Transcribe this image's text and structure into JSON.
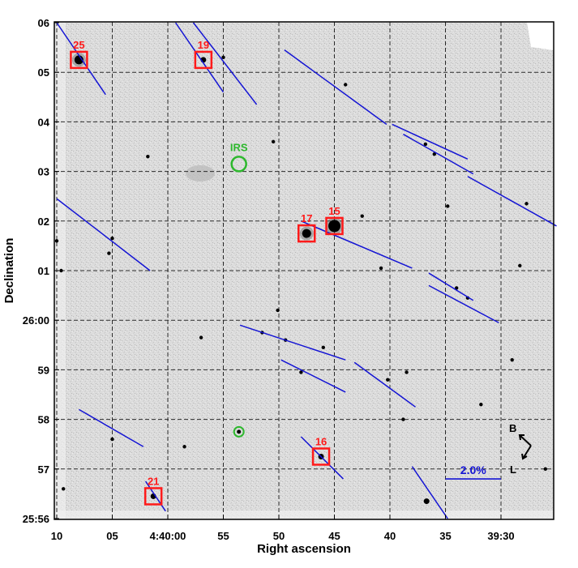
{
  "colors": {
    "frame": "#000000",
    "grid": "#2a2a2a",
    "sky": "#d9d9d9",
    "vector": "#1414d4",
    "box": "#ff1a1a",
    "irs": "#2db82d"
  },
  "chart_data": {
    "type": "scatter",
    "xlabel": "Right ascension",
    "ylabel": "Declination",
    "x_ticks": [
      {
        "value": 10,
        "label": "10"
      },
      {
        "value": 5,
        "label": "05"
      },
      {
        "value": 0,
        "label": "4:40:00"
      },
      {
        "value": -5,
        "label": "55"
      },
      {
        "value": -10,
        "label": "50"
      },
      {
        "value": -15,
        "label": "45"
      },
      {
        "value": -20,
        "label": "40"
      },
      {
        "value": -25,
        "label": "35"
      },
      {
        "value": -30,
        "label": "39:30"
      }
    ],
    "y_ticks": [
      {
        "value": 0,
        "label": "25:56"
      },
      {
        "value": 1,
        "label": "57"
      },
      {
        "value": 2,
        "label": "58"
      },
      {
        "value": 3,
        "label": "59"
      },
      {
        "value": 4,
        "label": "26:00"
      },
      {
        "value": 5,
        "label": "01"
      },
      {
        "value": 6,
        "label": "02"
      },
      {
        "value": 7,
        "label": "03"
      },
      {
        "value": 8,
        "label": "04"
      },
      {
        "value": 9,
        "label": "05"
      },
      {
        "value": 10,
        "label": "06"
      }
    ],
    "xlim": [
      10,
      -35
    ],
    "ylim": [
      0,
      10.1
    ],
    "grid": true,
    "stars": [
      {
        "x": 8.0,
        "y": 9.25,
        "mag": 3,
        "label": "25"
      },
      {
        "x": -3.2,
        "y": 9.25,
        "mag": 2,
        "label": "19"
      },
      {
        "x": -12.5,
        "y": 5.75,
        "mag": 3,
        "label": "17"
      },
      {
        "x": -15.0,
        "y": 5.9,
        "mag": 4,
        "label": "15"
      },
      {
        "x": -13.8,
        "y": 1.25,
        "mag": 2,
        "label": "16"
      },
      {
        "x": 1.3,
        "y": 0.45,
        "mag": 2,
        "label": "21"
      },
      {
        "x": -5.0,
        "y": 9.3,
        "mag": 1
      },
      {
        "x": -16.0,
        "y": 8.75,
        "mag": 1
      },
      {
        "x": 5.0,
        "y": 5.65,
        "mag": 1
      },
      {
        "x": 5.3,
        "y": 5.35,
        "mag": 1
      },
      {
        "x": 1.8,
        "y": 7.3,
        "mag": 1
      },
      {
        "x": -23.2,
        "y": 7.55,
        "mag": 1
      },
      {
        "x": -24.0,
        "y": 7.35,
        "mag": 1
      },
      {
        "x": -32.3,
        "y": 6.35,
        "mag": 1
      },
      {
        "x": -26.0,
        "y": 4.65,
        "mag": 1
      },
      {
        "x": -27.0,
        "y": 4.45,
        "mag": 1
      },
      {
        "x": -10.6,
        "y": 3.6,
        "mag": 1
      },
      {
        "x": -12.0,
        "y": 2.95,
        "mag": 1
      },
      {
        "x": -19.8,
        "y": 2.8,
        "mag": 1
      },
      {
        "x": -21.2,
        "y": 2.0,
        "mag": 1
      },
      {
        "x": -21.5,
        "y": 2.95,
        "mag": 1
      },
      {
        "x": -31.7,
        "y": 5.1,
        "mag": 1
      },
      {
        "x": 5.0,
        "y": 1.6,
        "mag": 1
      },
      {
        "x": 9.4,
        "y": 0.6,
        "mag": 1
      },
      {
        "x": 9.6,
        "y": 5.0,
        "mag": 1
      },
      {
        "x": -23.3,
        "y": 0.35,
        "mag": 2
      },
      {
        "x": -8.5,
        "y": 3.75,
        "mag": 1
      },
      {
        "x": -9.9,
        "y": 4.2,
        "mag": 1
      },
      {
        "x": -19.2,
        "y": 5.05,
        "mag": 1
      },
      {
        "x": -14.0,
        "y": 3.45,
        "mag": 1
      },
      {
        "x": -17.5,
        "y": 6.1,
        "mag": 1
      },
      {
        "x": -25.2,
        "y": 6.3,
        "mag": 1
      },
      {
        "x": -9.5,
        "y": 7.6,
        "mag": 1
      },
      {
        "x": -1.5,
        "y": 1.45,
        "mag": 1
      },
      {
        "x": -34.0,
        "y": 1.0,
        "mag": 1
      },
      {
        "x": 10.0,
        "y": 5.6,
        "mag": 1
      },
      {
        "x": -31.0,
        "y": 3.2,
        "mag": 1
      },
      {
        "x": -3.0,
        "y": 3.65,
        "mag": 1
      },
      {
        "x": -28.2,
        "y": 2.3,
        "mag": 1
      }
    ],
    "polarization_vectors": [
      {
        "x1": 10.0,
        "y1": 10.0,
        "x2": 5.6,
        "y2": 8.55
      },
      {
        "x1": -0.7,
        "y1": 10.0,
        "x2": -5.0,
        "y2": 8.6
      },
      {
        "x1": -2.3,
        "y1": 10.0,
        "x2": -8.0,
        "y2": 8.35
      },
      {
        "x1": -10.5,
        "y1": 9.45,
        "x2": -19.7,
        "y2": 7.95
      },
      {
        "x1": -20.2,
        "y1": 7.95,
        "x2": -27.0,
        "y2": 7.25
      },
      {
        "x1": -21.2,
        "y1": 7.75,
        "x2": -27.5,
        "y2": 6.95
      },
      {
        "x1": -27.0,
        "y1": 6.9,
        "x2": -35.0,
        "y2": 5.9
      },
      {
        "x1": 10.0,
        "y1": 6.45,
        "x2": 1.6,
        "y2": 5.0
      },
      {
        "x1": -12.0,
        "y1": 6.0,
        "x2": -22.0,
        "y2": 5.05
      },
      {
        "x1": -23.5,
        "y1": 4.95,
        "x2": -27.5,
        "y2": 4.4
      },
      {
        "x1": -23.5,
        "y1": 4.7,
        "x2": -29.8,
        "y2": 3.95
      },
      {
        "x1": -6.5,
        "y1": 3.9,
        "x2": -16.0,
        "y2": 3.2
      },
      {
        "x1": -10.2,
        "y1": 3.2,
        "x2": -16.0,
        "y2": 2.55
      },
      {
        "x1": -16.8,
        "y1": 3.15,
        "x2": -22.3,
        "y2": 2.25
      },
      {
        "x1": 8.0,
        "y1": 2.2,
        "x2": 2.2,
        "y2": 1.45
      },
      {
        "x1": -12.0,
        "y1": 1.65,
        "x2": -15.8,
        "y2": 0.8
      },
      {
        "x1": 2.0,
        "y1": 0.75,
        "x2": 0.2,
        "y2": 0.15
      },
      {
        "x1": -22.0,
        "y1": 1.05,
        "x2": -25.2,
        "y2": 0.0
      }
    ],
    "irs": {
      "label": "IRS",
      "x": -6.4,
      "y": 7.15
    },
    "source_marker": {
      "x": -6.4,
      "y": 1.75
    },
    "scale_bar": {
      "label": "2.0%",
      "x1": -25.0,
      "y1": 0.8,
      "x2": -30.0,
      "y2": 0.8
    },
    "compass": {
      "b_label": "B",
      "l_label": "L"
    }
  }
}
